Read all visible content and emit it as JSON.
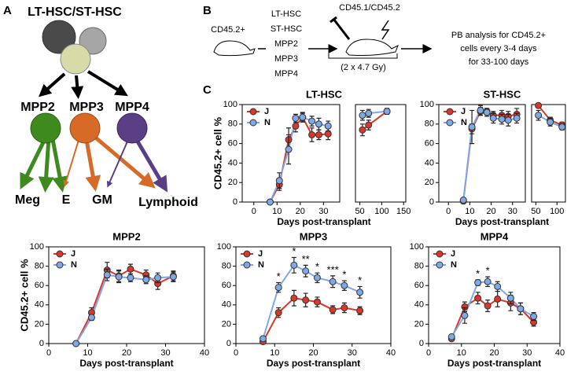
{
  "panel_labels": [
    "A",
    "B",
    "C"
  ],
  "diagram": {
    "root": "LT-HSC/ST-HSC",
    "progenitors": [
      "MPP2",
      "MPP3",
      "MPP4"
    ],
    "outputs": [
      "Meg",
      "E",
      "GM",
      "Lymphoid"
    ]
  },
  "schematic": {
    "donor": "CD45.2+",
    "donor_populations": [
      "LT-HSC",
      "ST-HSC",
      "MPP2",
      "MPP3",
      "MPP4"
    ],
    "recipient": "CD45.1/CD45.2",
    "irradiation": "(2 x 4.7 Gy)",
    "readout": [
      "PB analysis for CD45.2+",
      "cells every 3-4 days",
      "for 33-100 days"
    ]
  },
  "chart_data": [
    {
      "type": "line",
      "title": "LT-HSC",
      "x_label": "Days post-transplant",
      "y_label": "CD45.2+ cell %",
      "legend": "upper left",
      "ylim": [
        0,
        100
      ],
      "yticks": [
        0,
        20,
        40,
        60,
        80,
        100
      ],
      "x_segments": [
        {
          "xlim": [
            -5,
            37
          ],
          "xticks": [
            0,
            10,
            20,
            30
          ]
        },
        {
          "xlim": [
            40,
            155
          ],
          "xticks": [
            50,
            100,
            150
          ]
        }
      ],
      "x": [
        7,
        11,
        15,
        18,
        21,
        25,
        28,
        32,
        56,
        70,
        112
      ],
      "series": [
        {
          "name": "J",
          "color": "#d9372b",
          "values": [
            0,
            18,
            64,
            78,
            87,
            69,
            69,
            70,
            74,
            79,
            93
          ],
          "errors": [
            1,
            6,
            12,
            6,
            5,
            7,
            5,
            6,
            6,
            5,
            3
          ]
        },
        {
          "name": "N",
          "color": "#7fa9e6",
          "values": [
            0,
            22,
            54,
            86,
            87,
            83,
            80,
            78,
            89,
            91,
            93
          ],
          "errors": [
            1,
            8,
            15,
            4,
            4,
            5,
            6,
            5,
            5,
            4,
            3
          ]
        }
      ]
    },
    {
      "type": "line",
      "title": "ST-HSC",
      "x_label": "Days post-transplant",
      "legend": "upper left",
      "ylim": [
        0,
        100
      ],
      "yticks": [
        0,
        20,
        40,
        60,
        80,
        100
      ],
      "x_segments": [
        {
          "xlim": [
            -4.5,
            36
          ],
          "xticks": [
            0,
            10,
            20,
            30
          ]
        },
        {
          "xlim": [
            40,
            120
          ],
          "xticks": [
            50,
            100
          ]
        }
      ],
      "x": [
        7,
        11,
        15,
        18,
        21,
        25,
        28,
        32,
        56,
        84,
        112
      ],
      "series": [
        {
          "name": "J",
          "color": "#d9372b",
          "values": [
            1,
            75,
            93,
            93,
            89,
            89,
            88,
            90,
            99,
            84,
            79
          ],
          "errors": [
            1,
            5,
            4,
            3,
            4,
            5,
            5,
            6,
            2,
            3,
            3
          ]
        },
        {
          "name": "N",
          "color": "#7fa9e6",
          "values": [
            2,
            77,
            94,
            92,
            86,
            85,
            84,
            86,
            89,
            82,
            77
          ],
          "errors": [
            1,
            17,
            5,
            4,
            5,
            5,
            6,
            5,
            5,
            4,
            3
          ]
        }
      ]
    },
    {
      "type": "line",
      "title": "MPP2",
      "x_label": "Days post-transplant",
      "y_label": "CD45.2+ cell %",
      "legend": "upper left",
      "ylim": [
        0,
        100
      ],
      "yticks": [
        0,
        20,
        40,
        60,
        80,
        100
      ],
      "xlim": [
        0,
        40
      ],
      "xticks": [
        0,
        10,
        20,
        30,
        40
      ],
      "x": [
        7,
        11,
        15,
        18,
        21,
        25,
        28,
        32
      ],
      "series": [
        {
          "name": "J",
          "color": "#d9372b",
          "values": [
            0,
            32,
            76,
            70,
            77,
            71,
            62,
            70
          ],
          "errors": [
            1,
            5,
            8,
            6,
            5,
            5,
            6,
            5
          ]
        },
        {
          "name": "N",
          "color": "#7fa9e6",
          "values": [
            0,
            27,
            71,
            69,
            68,
            66,
            68,
            69
          ],
          "errors": [
            1,
            3,
            6,
            6,
            4,
            4,
            5,
            5
          ]
        }
      ]
    },
    {
      "type": "line",
      "title": "MPP3",
      "x_label": "Days post-transplant",
      "legend": "upper left",
      "ylim": [
        0,
        100
      ],
      "yticks": [
        0,
        20,
        40,
        60,
        80,
        100
      ],
      "xlim": [
        0,
        40
      ],
      "xticks": [
        0,
        10,
        20,
        30,
        40
      ],
      "x": [
        7,
        11,
        15,
        18,
        21,
        25,
        28,
        32
      ],
      "significance": [
        null,
        "*",
        "*",
        "**",
        "*",
        "***",
        "*",
        "*"
      ],
      "series": [
        {
          "name": "J",
          "color": "#d9372b",
          "values": [
            2,
            32,
            47,
            45,
            43,
            35,
            37,
            34
          ],
          "errors": [
            1,
            5,
            8,
            7,
            5,
            4,
            5,
            4
          ]
        },
        {
          "name": "N",
          "color": "#7fa9e6",
          "values": [
            5,
            58,
            81,
            75,
            68,
            64,
            60,
            53
          ],
          "errors": [
            1,
            5,
            8,
            6,
            5,
            6,
            5,
            6
          ]
        }
      ]
    },
    {
      "type": "line",
      "title": "MPP4",
      "x_label": "Days post-transplant",
      "legend": "upper left",
      "ylim": [
        0,
        100
      ],
      "yticks": [
        0,
        20,
        40,
        60,
        80,
        100
      ],
      "xlim": [
        0,
        40
      ],
      "xticks": [
        0,
        10,
        20,
        30,
        40
      ],
      "x": [
        7,
        11,
        15,
        18,
        21,
        25,
        28,
        32
      ],
      "significance": [
        null,
        null,
        "*",
        "*",
        null,
        null,
        null,
        null
      ],
      "series": [
        {
          "name": "J",
          "color": "#d9372b",
          "values": [
            5,
            38,
            47,
            39,
            46,
            42,
            36,
            22
          ],
          "errors": [
            1,
            5,
            6,
            6,
            8,
            8,
            6,
            4
          ]
        },
        {
          "name": "N",
          "color": "#7fa9e6",
          "values": [
            7,
            29,
            63,
            64,
            59,
            47,
            36,
            28
          ],
          "errors": [
            1,
            8,
            3,
            5,
            5,
            6,
            6,
            4
          ]
        }
      ]
    }
  ]
}
